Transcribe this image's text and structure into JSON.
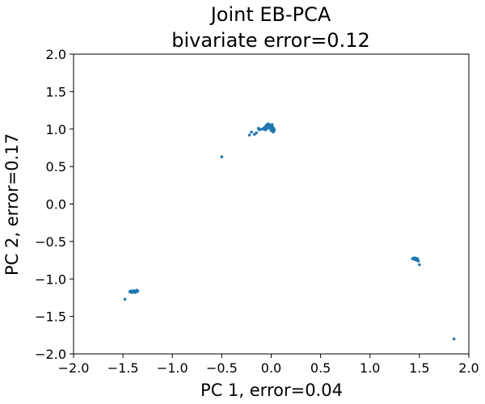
{
  "chart_data": {
    "type": "scatter",
    "title": "Joint EB-PCA",
    "subtitle": "bivariate error=0.12",
    "xlabel": "PC 1, error=0.04",
    "ylabel": "PC 2, error=0.17",
    "xlim": [
      -2.0,
      2.0
    ],
    "ylim": [
      -2.0,
      2.0
    ],
    "xticks": [
      "−2.0",
      "−1.5",
      "−1.0",
      "−0.5",
      "0.0",
      "0.5",
      "1.0",
      "1.5",
      "2.0"
    ],
    "yticks": [
      "−2.0",
      "−1.5",
      "−1.0",
      "−0.5",
      "0.0",
      "0.5",
      "1.0",
      "1.5",
      "2.0"
    ],
    "grid": false,
    "series_color": "#1f77b4",
    "series": [
      {
        "points": [
          [
            -0.05,
            1.05
          ],
          [
            -0.04,
            1.06
          ],
          [
            -0.03,
            1.07
          ],
          [
            -0.02,
            1.06
          ],
          [
            -0.01,
            1.05
          ],
          [
            0.0,
            1.04
          ],
          [
            0.01,
            1.03
          ],
          [
            0.02,
            1.02
          ],
          [
            0.02,
            1.01
          ],
          [
            0.03,
            1.0
          ],
          [
            0.03,
            0.98
          ],
          [
            0.02,
            0.97
          ],
          [
            0.01,
            0.99
          ],
          [
            0.0,
            1.0
          ],
          [
            -0.01,
            1.02
          ],
          [
            -0.02,
            1.03
          ],
          [
            -0.03,
            1.04
          ],
          [
            -0.06,
            1.03
          ],
          [
            -0.07,
            1.02
          ],
          [
            -0.05,
            1.0
          ],
          [
            -0.04,
            1.01
          ],
          [
            -0.01,
            1.01
          ],
          [
            0.0,
            0.98
          ],
          [
            0.02,
            0.96
          ],
          [
            0.01,
            1.06
          ],
          [
            -0.03,
            1.02
          ],
          [
            -0.06,
            0.99
          ],
          [
            -0.08,
            1.0
          ],
          [
            -0.1,
            1.0
          ],
          [
            -0.12,
            0.99
          ],
          [
            -0.13,
            1.01
          ],
          [
            -0.2,
            0.96
          ],
          [
            -0.22,
            0.92
          ],
          [
            -0.17,
            0.93
          ],
          [
            -0.15,
            0.95
          ],
          [
            -0.5,
            0.63
          ],
          [
            -1.48,
            -1.27
          ],
          [
            -1.42,
            -1.16
          ],
          [
            -1.41,
            -1.18
          ],
          [
            -1.4,
            -1.17
          ],
          [
            -1.39,
            -1.16
          ],
          [
            -1.38,
            -1.17
          ],
          [
            -1.37,
            -1.16
          ],
          [
            -1.36,
            -1.17
          ],
          [
            -1.35,
            -1.16
          ],
          [
            -1.38,
            -1.18
          ],
          [
            -1.4,
            -1.16
          ],
          [
            -1.43,
            -1.17
          ],
          [
            -1.36,
            -1.15
          ],
          [
            1.43,
            -0.73
          ],
          [
            1.44,
            -0.72
          ],
          [
            1.45,
            -0.73
          ],
          [
            1.46,
            -0.72
          ],
          [
            1.47,
            -0.74
          ],
          [
            1.48,
            -0.73
          ],
          [
            1.45,
            -0.74
          ],
          [
            1.47,
            -0.75
          ],
          [
            1.49,
            -0.76
          ],
          [
            1.5,
            -0.81
          ],
          [
            1.85,
            -1.8
          ]
        ]
      }
    ]
  }
}
